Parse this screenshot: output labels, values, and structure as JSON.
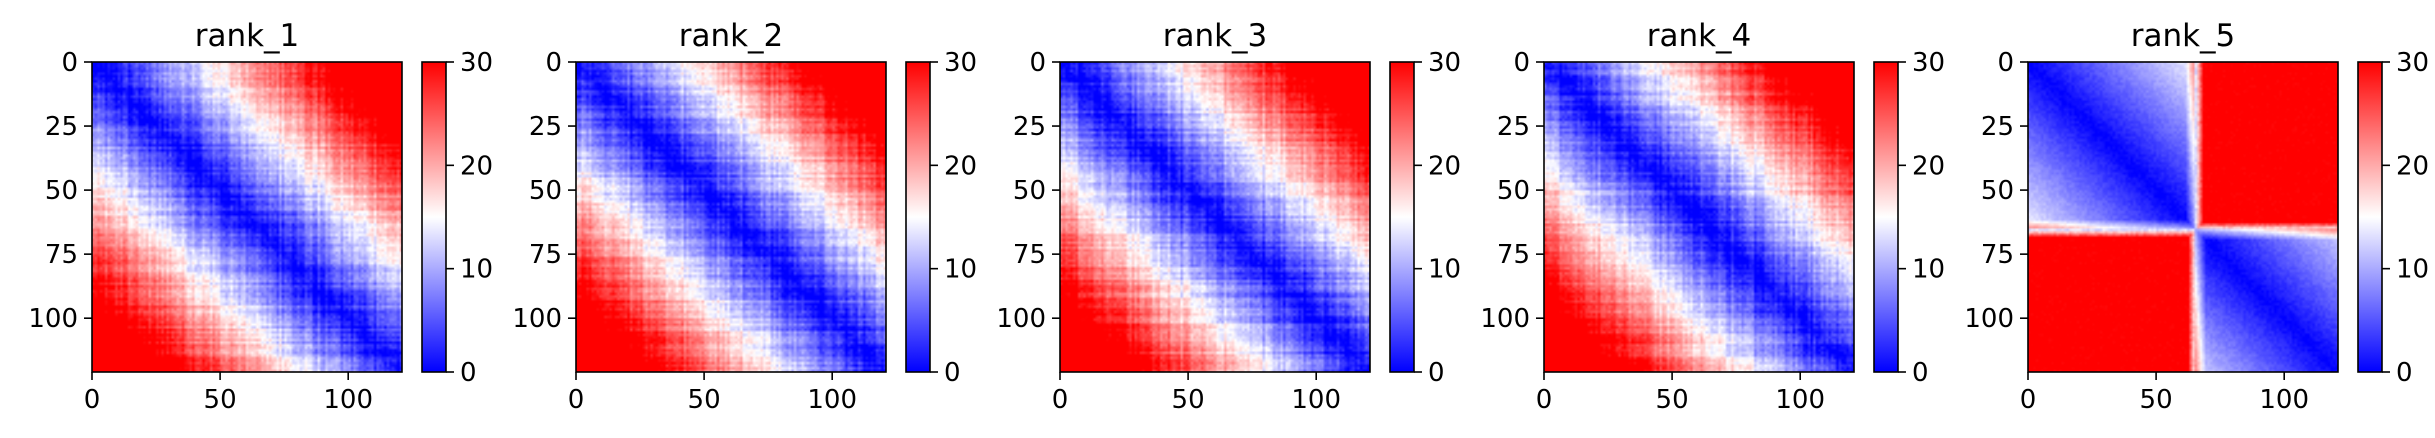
{
  "chart_data": [
    {
      "type": "heatmap",
      "title": "rank_1",
      "pattern": "diagonal",
      "red_regions": "corners",
      "x_ticks": [
        0,
        50,
        100
      ],
      "y_ticks": [
        0,
        25,
        50,
        75,
        100
      ],
      "xlim": [
        0,
        121
      ],
      "ylim": [
        121,
        0
      ],
      "colorbar": {
        "ticks": [
          0,
          10,
          20,
          30
        ],
        "min": 0,
        "max": 30,
        "cmap": "bwr"
      }
    },
    {
      "type": "heatmap",
      "title": "rank_2",
      "pattern": "diagonal",
      "red_regions": "corners",
      "x_ticks": [
        0,
        50,
        100
      ],
      "y_ticks": [
        0,
        25,
        50,
        75,
        100
      ],
      "xlim": [
        0,
        121
      ],
      "ylim": [
        121,
        0
      ],
      "colorbar": {
        "ticks": [
          0,
          10,
          20,
          30
        ],
        "min": 0,
        "max": 30,
        "cmap": "bwr"
      }
    },
    {
      "type": "heatmap",
      "title": "rank_3",
      "pattern": "diagonal",
      "red_regions": "corners",
      "x_ticks": [
        0,
        50,
        100
      ],
      "y_ticks": [
        0,
        25,
        50,
        75,
        100
      ],
      "xlim": [
        0,
        121
      ],
      "ylim": [
        121,
        0
      ],
      "colorbar": {
        "ticks": [
          0,
          10,
          20,
          30
        ],
        "min": 0,
        "max": 30,
        "cmap": "bwr"
      }
    },
    {
      "type": "heatmap",
      "title": "rank_4",
      "pattern": "diagonal",
      "red_regions": "corners",
      "x_ticks": [
        0,
        50,
        100
      ],
      "y_ticks": [
        0,
        25,
        50,
        75,
        100
      ],
      "xlim": [
        0,
        121
      ],
      "ylim": [
        121,
        0
      ],
      "colorbar": {
        "ticks": [
          0,
          10,
          20,
          30
        ],
        "min": 0,
        "max": 30,
        "cmap": "bwr"
      }
    },
    {
      "type": "heatmap",
      "title": "rank_5",
      "pattern": "block",
      "block_boundary": 65,
      "x_ticks": [
        0,
        50,
        100
      ],
      "y_ticks": [
        0,
        25,
        50,
        75,
        100
      ],
      "xlim": [
        0,
        121
      ],
      "ylim": [
        121,
        0
      ],
      "colorbar": {
        "ticks": [
          0,
          10,
          20,
          30
        ],
        "min": 0,
        "max": 30,
        "cmap": "bwr"
      }
    }
  ],
  "colors": {
    "low": "#0000ff",
    "mid": "#ffffff",
    "high": "#ff0000"
  }
}
